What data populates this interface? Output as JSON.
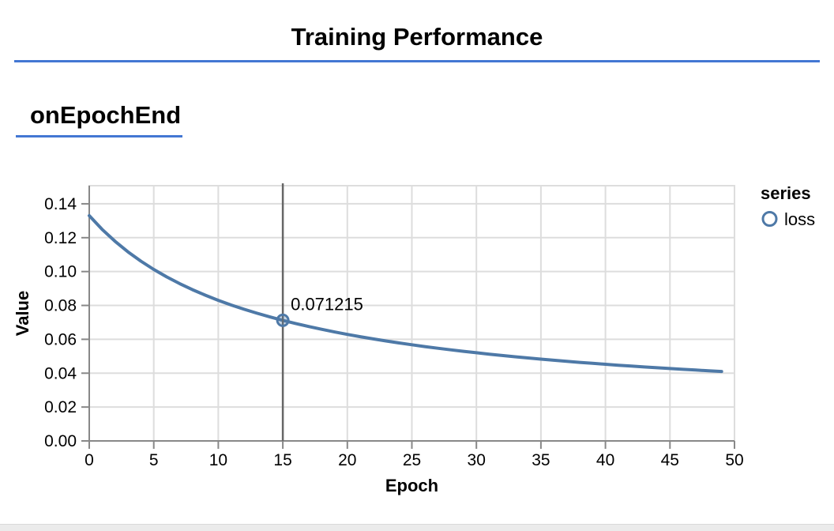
{
  "page": {
    "title": "Training Performance",
    "section": "onEpochEnd"
  },
  "colors": {
    "accent_rule": "#4377d3",
    "line": "#4e79a7",
    "point_fill_opacity": 0.3,
    "grid": "#dddddd",
    "view_border": "#dddddd",
    "axis": "#888888",
    "crosshair": "#666666",
    "text": "#000000",
    "footer_strip": "#ebebeb"
  },
  "chart_data": {
    "type": "line",
    "title": "",
    "xlabel": "Epoch",
    "ylabel": "Value",
    "xlim": [
      0,
      50
    ],
    "ylim": [
      0,
      0.1507
    ],
    "x_ticks": [
      0,
      5,
      10,
      15,
      20,
      25,
      30,
      35,
      40,
      45,
      50
    ],
    "y_ticks": [
      0.0,
      0.02,
      0.04,
      0.06,
      0.08,
      0.1,
      0.12,
      0.14
    ],
    "grid": true,
    "legend": {
      "title": "series",
      "position": "right",
      "entries": [
        {
          "label": "loss",
          "marker": "open-circle"
        }
      ]
    },
    "series": [
      {
        "name": "loss",
        "x": [
          0,
          1,
          2,
          3,
          4,
          5,
          6,
          7,
          8,
          9,
          10,
          11,
          12,
          13,
          14,
          15,
          16,
          17,
          18,
          19,
          20,
          21,
          22,
          23,
          24,
          25,
          26,
          27,
          28,
          29,
          30,
          31,
          32,
          33,
          34,
          35,
          36,
          37,
          38,
          39,
          40,
          41,
          42,
          43,
          44,
          45,
          46,
          47,
          48,
          49
        ],
        "y": [
          0.132998,
          0.124892,
          0.117833,
          0.111632,
          0.106141,
          0.101244,
          0.096851,
          0.092886,
          0.089291,
          0.086016,
          0.08302,
          0.080269,
          0.077734,
          0.07539,
          0.073217,
          0.071215,
          0.069314,
          0.067554,
          0.065907,
          0.06436,
          0.062906,
          0.061537,
          0.060245,
          0.059023,
          0.057867,
          0.056771,
          0.05573,
          0.054741,
          0.0538,
          0.052903,
          0.052047,
          0.05123,
          0.050448,
          0.049701,
          0.048984,
          0.048297,
          0.047638,
          0.047006,
          0.046397,
          0.045813,
          0.045249,
          0.044707,
          0.044184,
          0.04368,
          0.043192,
          0.042722,
          0.042268,
          0.041829,
          0.041404,
          0.040992
        ]
      }
    ],
    "tooltip": {
      "epoch": 15,
      "value": 0.071215,
      "label": "0.071215"
    }
  }
}
